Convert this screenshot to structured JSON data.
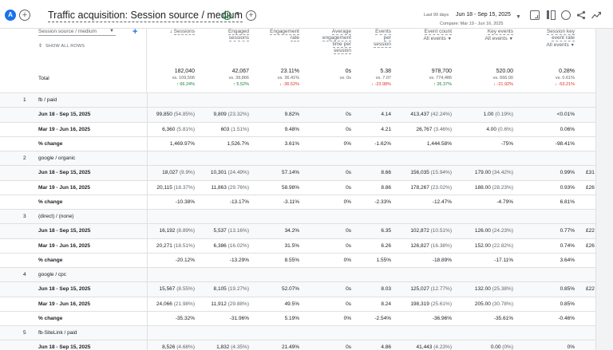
{
  "header": {
    "avatar_letter": "A",
    "add_label": "+",
    "title": "Traffic acquisition: Session source / medium",
    "date_label": "Last 90 days",
    "date_range": "Jun 18 - Sep 15, 2025",
    "compare_range": "Compare: Mar 19 - Jun 16, 2025"
  },
  "colors": {
    "accent": "#1a73e8",
    "positive": "#188038",
    "negative": "#d93025"
  },
  "icons": [
    "report-icon",
    "compare-icon",
    "insights-icon",
    "share-icon",
    "trend-icon"
  ],
  "table": {
    "dimension_select": "Session source / medium",
    "show_all_rows": "SHOW ALL ROWS",
    "columns": [
      {
        "label": "Sessions",
        "sorted": true,
        "selector": ""
      },
      {
        "label": "Engaged sessions",
        "selector": ""
      },
      {
        "label": "Engagement rate",
        "selector": ""
      },
      {
        "label": "Average engagement time per session",
        "selector": ""
      },
      {
        "label": "Events per session",
        "selector": ""
      },
      {
        "label": "Event count",
        "selector": "All events"
      },
      {
        "label": "Key events",
        "selector": "All events"
      },
      {
        "label": "Session key event rate",
        "selector": "All events"
      }
    ],
    "total": {
      "label": "Total",
      "values": [
        {
          "v": "182,040",
          "vs": "vs. 109,506",
          "ch": "↑ 66.24%",
          "dir": "up"
        },
        {
          "v": "42,067",
          "vs": "vs. 39,866",
          "ch": "↑ 5.52%",
          "dir": "up"
        },
        {
          "v": "23.11%",
          "vs": "vs. 36.41%",
          "ch": "↓ -36.52%",
          "dir": "down"
        },
        {
          "v": "0s",
          "vs": "vs. 0s",
          "ch": "",
          "dir": ""
        },
        {
          "v": "5.38",
          "vs": "vs. 7.07",
          "ch": "↓ -23.98%",
          "dir": "down"
        },
        {
          "v": "978,700",
          "vs": "vs. 774,486",
          "ch": "↑ 26.37%",
          "dir": "up"
        },
        {
          "v": "520.00",
          "vs": "vs. 666.00",
          "ch": "↓ -21.92%",
          "dir": "down"
        },
        {
          "v": "0.28%",
          "vs": "vs. 0.61%",
          "ch": "↓ -53.21%",
          "dir": "down"
        }
      ]
    },
    "rows": [
      {
        "type": "group",
        "num": "1",
        "label": "fb / paid"
      },
      {
        "type": "p1",
        "label": "Jun 18 - Sep 15, 2025",
        "cells": [
          [
            "99,850",
            "(54.85%)"
          ],
          [
            "9,809",
            "(23.32%)"
          ],
          [
            "9.82%",
            ""
          ],
          [
            "0s",
            ""
          ],
          [
            "4.14",
            ""
          ],
          [
            "413,437",
            "(42.24%)"
          ],
          [
            "1.00",
            "(0.19%)"
          ],
          [
            "<0.01%",
            ""
          ]
        ],
        "extra": ""
      },
      {
        "type": "p2",
        "label": "Mar 19 - Jun 16, 2025",
        "cells": [
          [
            "6,360",
            "(5.81%)"
          ],
          [
            "603",
            "(1.51%)"
          ],
          [
            "9.48%",
            ""
          ],
          [
            "0s",
            ""
          ],
          [
            "4.21",
            ""
          ],
          [
            "26,767",
            "(3.46%)"
          ],
          [
            "4.00",
            "(0.6%)"
          ],
          [
            "0.06%",
            ""
          ]
        ],
        "extra": ""
      },
      {
        "type": "pc",
        "label": "% change",
        "cells": [
          [
            "1,469.97%",
            ""
          ],
          [
            "1,526.7%",
            ""
          ],
          [
            "3.61%",
            ""
          ],
          [
            "0%",
            ""
          ],
          [
            "-1.62%",
            ""
          ],
          [
            "1,444.58%",
            ""
          ],
          [
            "-75%",
            ""
          ],
          [
            "-98.41%",
            ""
          ]
        ],
        "extra": ""
      },
      {
        "type": "group",
        "num": "2",
        "label": "google / organic"
      },
      {
        "type": "p1",
        "label": "Jun 18 - Sep 15, 2025",
        "cells": [
          [
            "18,027",
            "(9.9%)"
          ],
          [
            "10,301",
            "(24.49%)"
          ],
          [
            "57.14%",
            ""
          ],
          [
            "0s",
            ""
          ],
          [
            "8.66",
            ""
          ],
          [
            "156,035",
            "(15.94%)"
          ],
          [
            "179.00",
            "(34.42%)"
          ],
          [
            "0.99%",
            ""
          ]
        ],
        "extra": "£31"
      },
      {
        "type": "p2",
        "label": "Mar 19 - Jun 16, 2025",
        "cells": [
          [
            "20,115",
            "(18.37%)"
          ],
          [
            "11,863",
            "(29.76%)"
          ],
          [
            "58.98%",
            ""
          ],
          [
            "0s",
            ""
          ],
          [
            "8.86",
            ""
          ],
          [
            "178,267",
            "(23.02%)"
          ],
          [
            "188.00",
            "(28.23%)"
          ],
          [
            "0.93%",
            ""
          ]
        ],
        "extra": "£26"
      },
      {
        "type": "pc",
        "label": "% change",
        "cells": [
          [
            "-10.38%",
            ""
          ],
          [
            "-13.17%",
            ""
          ],
          [
            "-3.11%",
            ""
          ],
          [
            "0%",
            ""
          ],
          [
            "-2.33%",
            ""
          ],
          [
            "-12.47%",
            ""
          ],
          [
            "-4.79%",
            ""
          ],
          [
            "6.81%",
            ""
          ]
        ],
        "extra": ""
      },
      {
        "type": "group",
        "num": "3",
        "label": "(direct) / (none)"
      },
      {
        "type": "p1",
        "label": "Jun 18 - Sep 15, 2025",
        "cells": [
          [
            "16,192",
            "(8.89%)"
          ],
          [
            "5,537",
            "(13.16%)"
          ],
          [
            "34.2%",
            ""
          ],
          [
            "0s",
            ""
          ],
          [
            "6.35",
            ""
          ],
          [
            "102,872",
            "(10.51%)"
          ],
          [
            "126.00",
            "(24.23%)"
          ],
          [
            "0.77%",
            ""
          ]
        ],
        "extra": "£22"
      },
      {
        "type": "p2",
        "label": "Mar 19 - Jun 16, 2025",
        "cells": [
          [
            "20,271",
            "(18.51%)"
          ],
          [
            "6,386",
            "(16.02%)"
          ],
          [
            "31.5%",
            ""
          ],
          [
            "0s",
            ""
          ],
          [
            "6.26",
            ""
          ],
          [
            "126,827",
            "(16.38%)"
          ],
          [
            "152.00",
            "(22.82%)"
          ],
          [
            "0.74%",
            ""
          ]
        ],
        "extra": "£26"
      },
      {
        "type": "pc",
        "label": "% change",
        "cells": [
          [
            "-20.12%",
            ""
          ],
          [
            "-13.29%",
            ""
          ],
          [
            "8.55%",
            ""
          ],
          [
            "0%",
            ""
          ],
          [
            "1.55%",
            ""
          ],
          [
            "-18.89%",
            ""
          ],
          [
            "-17.11%",
            ""
          ],
          [
            "3.64%",
            ""
          ]
        ],
        "extra": ""
      },
      {
        "type": "group",
        "num": "4",
        "label": "google / cpc"
      },
      {
        "type": "p1",
        "label": "Jun 18 - Sep 15, 2025",
        "cells": [
          [
            "15,567",
            "(8.55%)"
          ],
          [
            "8,105",
            "(19.27%)"
          ],
          [
            "52.07%",
            ""
          ],
          [
            "0s",
            ""
          ],
          [
            "8.03",
            ""
          ],
          [
            "125,027",
            "(12.77%)"
          ],
          [
            "132.00",
            "(25.38%)"
          ],
          [
            "0.85%",
            ""
          ]
        ],
        "extra": "£22"
      },
      {
        "type": "p2",
        "label": "Mar 19 - Jun 16, 2025",
        "cells": [
          [
            "24,066",
            "(21.98%)"
          ],
          [
            "11,912",
            "(29.88%)"
          ],
          [
            "49.5%",
            ""
          ],
          [
            "0s",
            ""
          ],
          [
            "8.24",
            ""
          ],
          [
            "198,319",
            "(25.61%)"
          ],
          [
            "205.00",
            "(30.78%)"
          ],
          [
            "0.85%",
            ""
          ]
        ],
        "extra": ""
      },
      {
        "type": "pc",
        "label": "% change",
        "cells": [
          [
            "-35.32%",
            ""
          ],
          [
            "-31.96%",
            ""
          ],
          [
            "5.19%",
            ""
          ],
          [
            "0%",
            ""
          ],
          [
            "-2.54%",
            ""
          ],
          [
            "-36.96%",
            ""
          ],
          [
            "-35.61%",
            ""
          ],
          [
            "-0.46%",
            ""
          ]
        ],
        "extra": ""
      },
      {
        "type": "group",
        "num": "5",
        "label": "fb-SiteLink / paid"
      },
      {
        "type": "p1",
        "label": "Jun 18 - Sep 15, 2025",
        "cells": [
          [
            "8,526",
            "(4.68%)"
          ],
          [
            "1,832",
            "(4.35%)"
          ],
          [
            "21.49%",
            ""
          ],
          [
            "0s",
            ""
          ],
          [
            "4.86",
            ""
          ],
          [
            "41,443",
            "(4.23%)"
          ],
          [
            "0.00",
            "(0%)"
          ],
          [
            "0%",
            ""
          ]
        ],
        "extra": ""
      }
    ]
  }
}
